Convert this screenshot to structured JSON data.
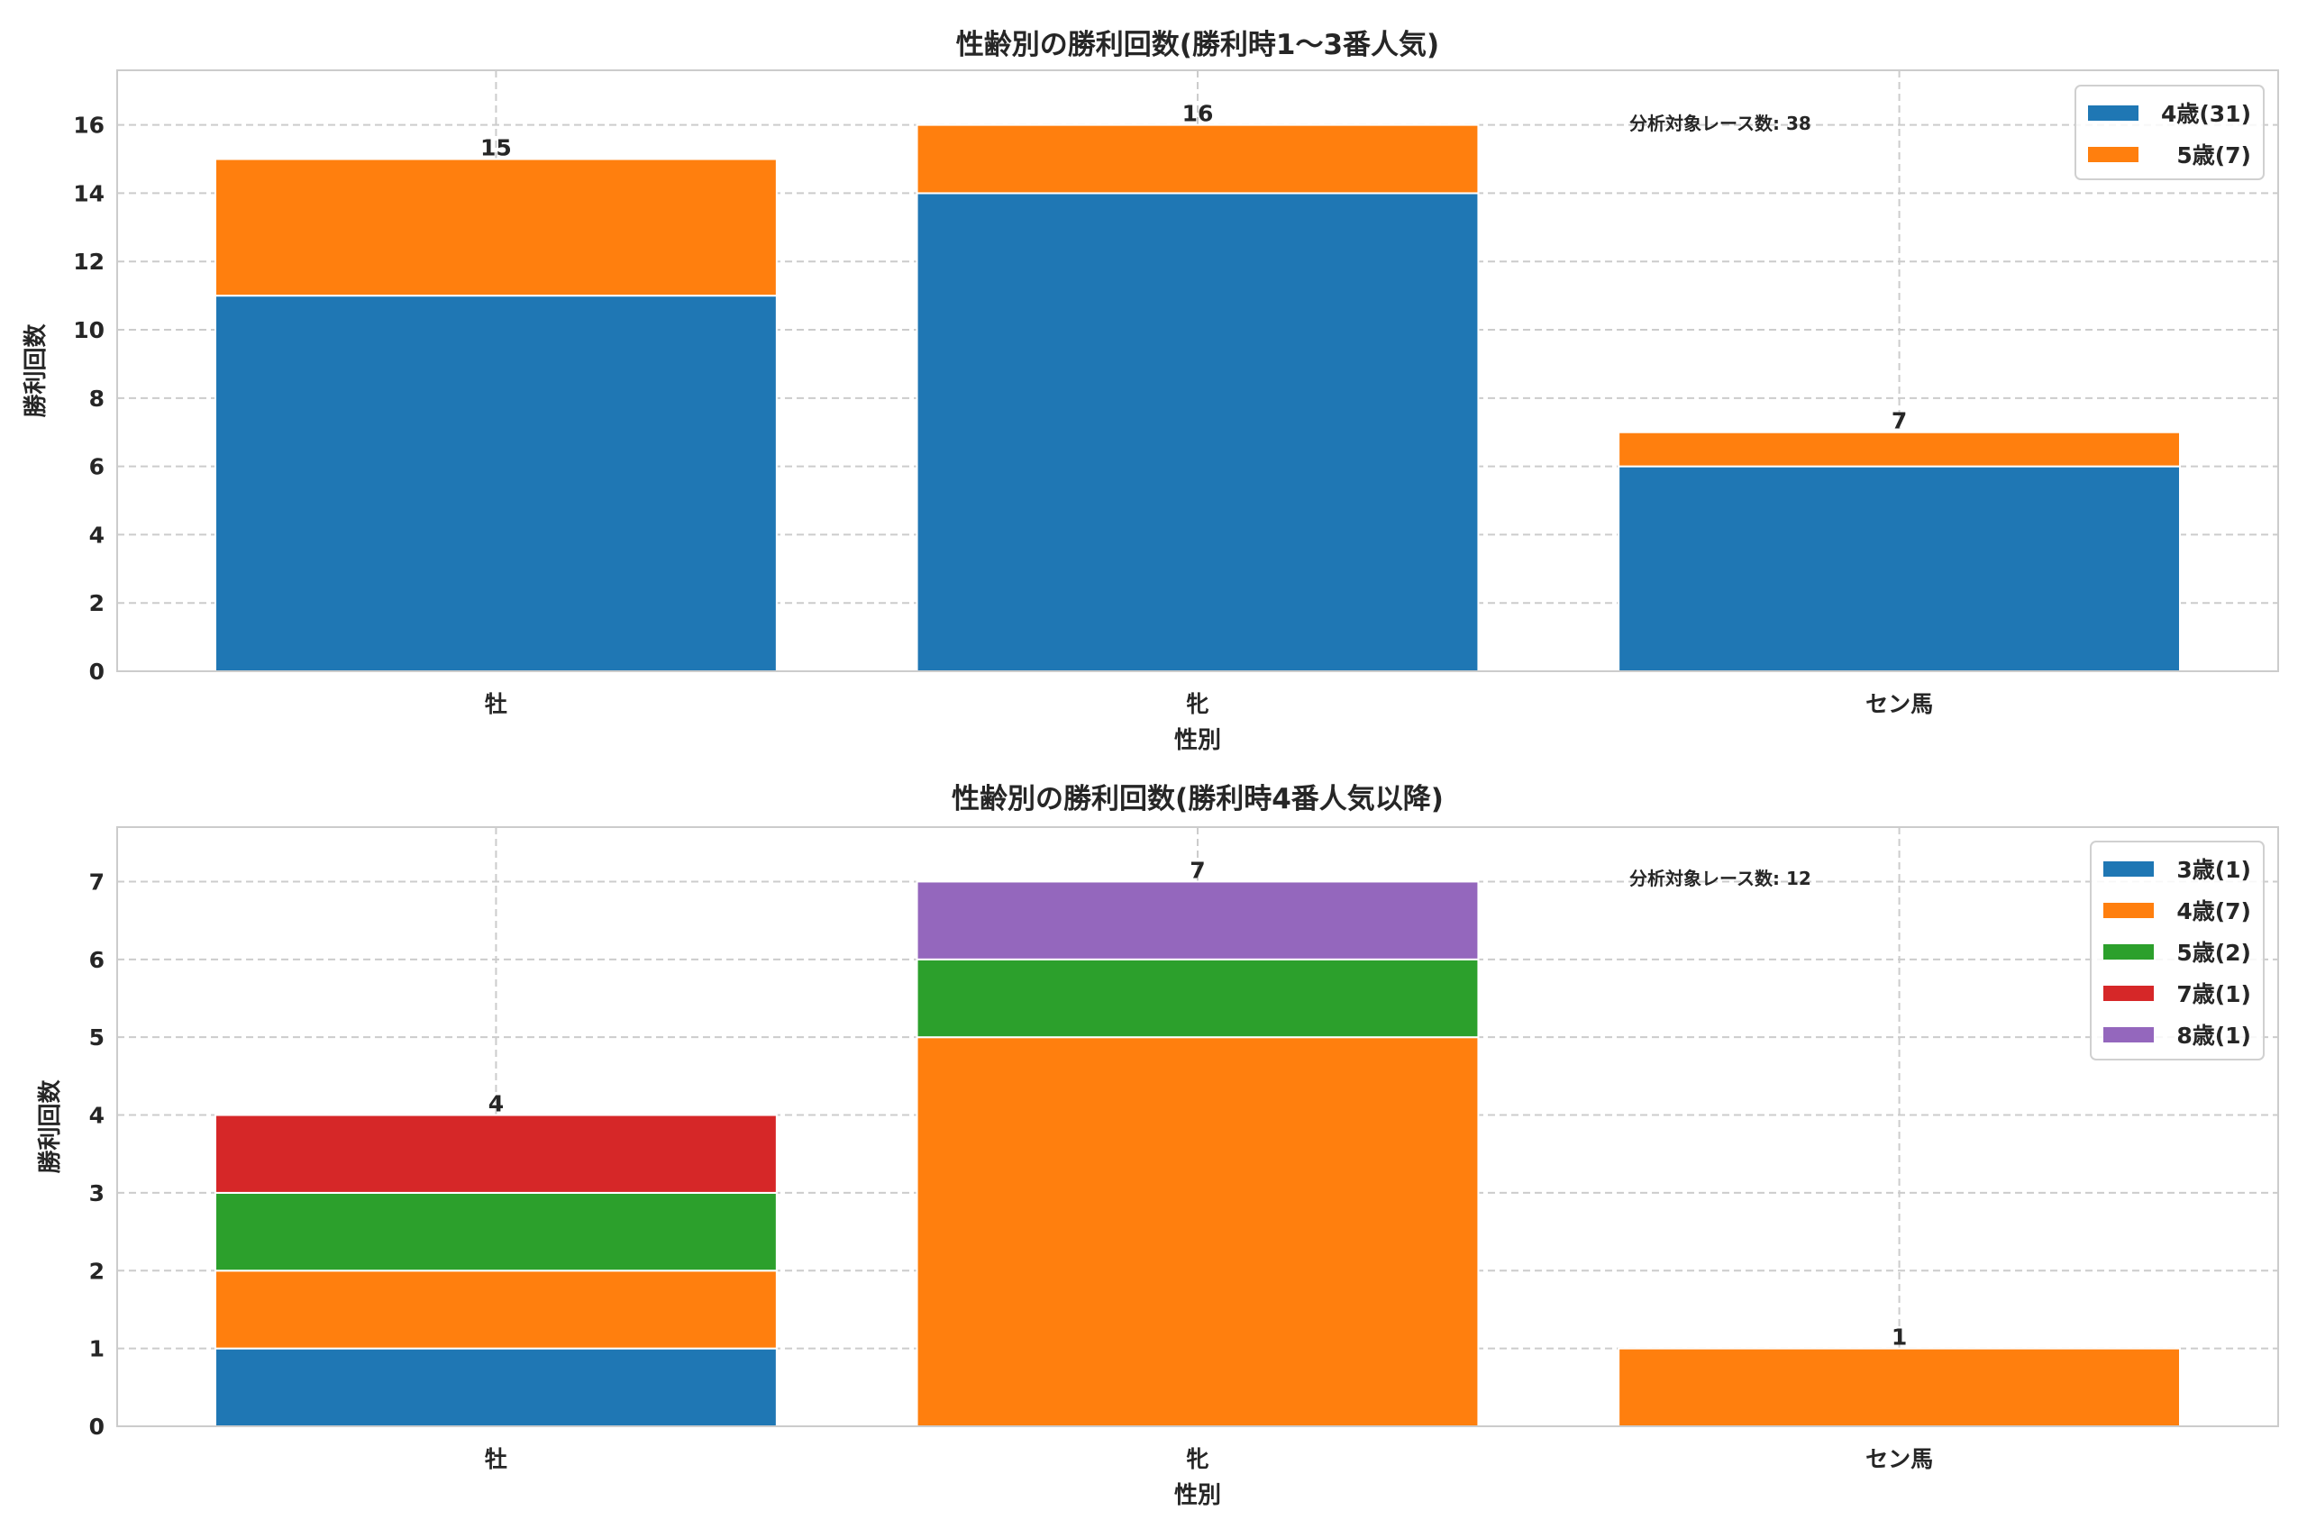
{
  "chart_data": [
    {
      "type": "bar",
      "stacked": true,
      "title": "性齢別の勝利回数(勝利時1〜3番人気)",
      "xlabel": "性別",
      "ylabel": "勝利回数",
      "categories": [
        "牡",
        "牝",
        "セン馬"
      ],
      "series": [
        {
          "name": "4歳(31)",
          "color": "#1f77b4",
          "values": [
            11,
            14,
            6
          ]
        },
        {
          "name": "5歳(7)",
          "color": "#ff7f0e",
          "values": [
            4,
            2,
            1
          ]
        }
      ],
      "totals": [
        15,
        16,
        7
      ],
      "yticks": [
        0,
        2,
        4,
        6,
        8,
        10,
        12,
        14,
        16
      ],
      "ylim": [
        0,
        17.6
      ],
      "grid": true,
      "legend": "top-right",
      "annotation": "分析対象レース数: 38"
    },
    {
      "type": "bar",
      "stacked": true,
      "title": "性齢別の勝利回数(勝利時4番人気以降)",
      "xlabel": "性別",
      "ylabel": "勝利回数",
      "categories": [
        "牡",
        "牝",
        "セン馬"
      ],
      "series": [
        {
          "name": "3歳(1)",
          "color": "#1f77b4",
          "values": [
            1,
            0,
            0
          ]
        },
        {
          "name": "4歳(7)",
          "color": "#ff7f0e",
          "values": [
            1,
            5,
            1
          ]
        },
        {
          "name": "5歳(2)",
          "color": "#2ca02c",
          "values": [
            1,
            1,
            0
          ]
        },
        {
          "name": "7歳(1)",
          "color": "#d62728",
          "values": [
            1,
            0,
            0
          ]
        },
        {
          "name": "8歳(1)",
          "color": "#9467bd",
          "values": [
            0,
            1,
            0
          ]
        }
      ],
      "totals": [
        4,
        7,
        1
      ],
      "yticks": [
        0,
        1,
        2,
        3,
        4,
        5,
        6,
        7
      ],
      "ylim": [
        0,
        7.7
      ],
      "grid": true,
      "legend": "top-right",
      "annotation": "分析対象レース数: 12"
    }
  ]
}
